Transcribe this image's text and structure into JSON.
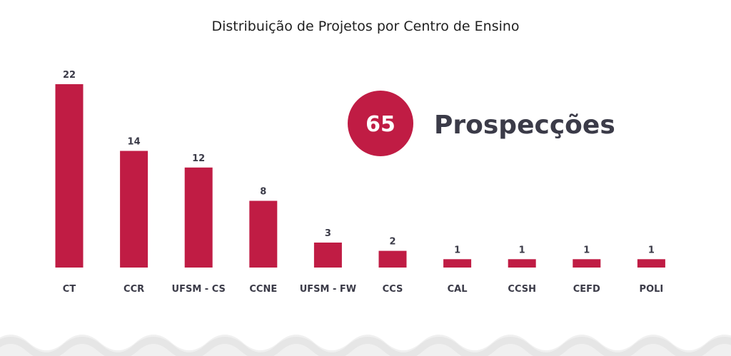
{
  "chart_data": {
    "type": "bar",
    "title": "Distribuição de Projetos por Centro de Ensino",
    "categories": [
      "CT",
      "CCR",
      "UFSM - CS",
      "CCNE",
      "UFSM - FW",
      "CCS",
      "CAL",
      "CCSH",
      "CEFD",
      "POLI"
    ],
    "values": [
      22,
      14,
      12,
      8,
      3,
      2,
      1,
      1,
      1,
      1
    ],
    "xlabel": "",
    "ylabel": "",
    "ylim": [
      0,
      22
    ],
    "grid": false,
    "bar_color": "#c01c44"
  },
  "summary": {
    "count": "65",
    "label": "Prospecções",
    "badge_color": "#c01c44",
    "text_color": "#3b3b48"
  }
}
